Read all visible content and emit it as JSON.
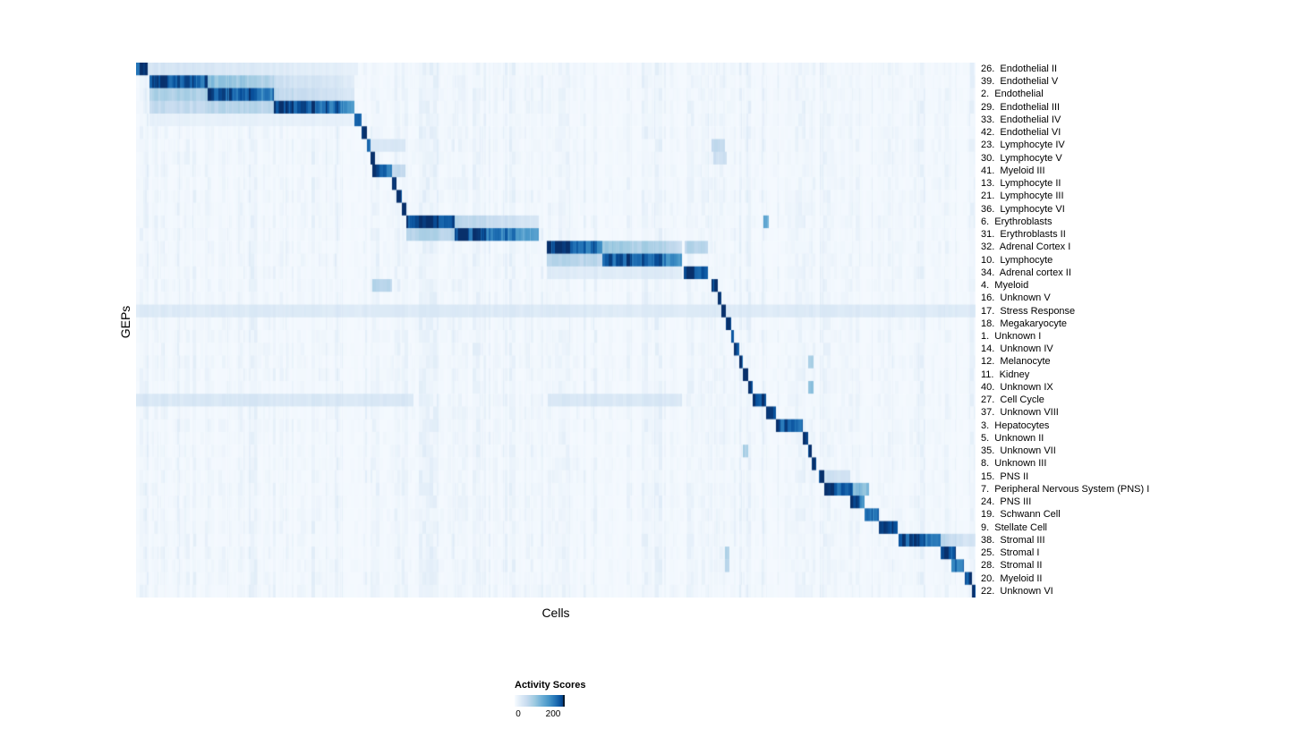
{
  "chart_data": {
    "type": "heatmap",
    "title": "",
    "xlabel": "Cells",
    "ylabel": "GEPs",
    "legend": {
      "title": "Activity Scores",
      "min": 0,
      "max": 200,
      "ticks": [
        "0",
        "200"
      ]
    },
    "value_note": "block v values are fractions of the max activity score (200)",
    "colormap": [
      {
        "p": 0.0,
        "c": "#f7fbff"
      },
      {
        "p": 0.12,
        "c": "#deebf7"
      },
      {
        "p": 0.25,
        "c": "#c6dbef"
      },
      {
        "p": 0.4,
        "c": "#9ecae1"
      },
      {
        "p": 0.55,
        "c": "#6baed6"
      },
      {
        "p": 0.7,
        "c": "#4292c6"
      },
      {
        "p": 0.82,
        "c": "#2171b5"
      },
      {
        "p": 0.92,
        "c": "#08519c"
      },
      {
        "p": 1.0,
        "c": "#08306b"
      }
    ],
    "rows": [
      {
        "label": "26.  Endothelial II",
        "blocks": [
          {
            "x0": 0.0,
            "x1": 0.013,
            "v": 1.0
          },
          {
            "x0": 0.013,
            "x1": 0.264,
            "v": 0.18,
            "v1": 0.08
          }
        ]
      },
      {
        "label": "39.  Endothelial V",
        "blocks": [
          {
            "x0": 0.015,
            "x1": 0.085,
            "v": 1.0,
            "v1": 0.85
          },
          {
            "x0": 0.085,
            "x1": 0.164,
            "v": 0.5,
            "v1": 0.3
          },
          {
            "x0": 0.164,
            "x1": 0.26,
            "v": 0.22,
            "v1": 0.12
          }
        ]
      },
      {
        "label": "2.  Endothelial",
        "blocks": [
          {
            "x0": 0.015,
            "x1": 0.085,
            "v": 0.35
          },
          {
            "x0": 0.085,
            "x1": 0.164,
            "v": 1.0,
            "v1": 0.8
          },
          {
            "x0": 0.164,
            "x1": 0.26,
            "v": 0.28,
            "v1": 0.15
          }
        ]
      },
      {
        "label": "29.  Endothelial III",
        "blocks": [
          {
            "x0": 0.015,
            "x1": 0.085,
            "v": 0.25
          },
          {
            "x0": 0.085,
            "x1": 0.164,
            "v": 0.3
          },
          {
            "x0": 0.164,
            "x1": 0.26,
            "v": 1.0,
            "v1": 0.75
          }
        ]
      },
      {
        "label": "33.  Endothelial IV",
        "blocks": [
          {
            "x0": 0.015,
            "x1": 0.26,
            "v": 0.08
          },
          {
            "x0": 0.26,
            "x1": 0.2676,
            "v": 1.0
          }
        ]
      },
      {
        "label": "42.  Endothelial VI",
        "blocks": [
          {
            "x0": 0.2676,
            "x1": 0.274,
            "v": 1.0
          }
        ]
      },
      {
        "label": "23.  Lymphocyte IV",
        "blocks": [
          {
            "x0": 0.274,
            "x1": 0.279,
            "v": 1.0
          },
          {
            "x0": 0.279,
            "x1": 0.32,
            "v": 0.15
          },
          {
            "x0": 0.6855,
            "x1": 0.7014,
            "v": 0.25
          }
        ]
      },
      {
        "label": "30.  Lymphocyte V",
        "blocks": [
          {
            "x0": 0.279,
            "x1": 0.2846,
            "v": 1.0
          },
          {
            "x0": 0.6876,
            "x1": 0.7036,
            "v": 0.2
          }
        ]
      },
      {
        "label": "41.  Myeloid III",
        "blocks": [
          {
            "x0": 0.2814,
            "x1": 0.3049,
            "v": 1.0,
            "v1": 0.8
          },
          {
            "x0": 0.3049,
            "x1": 0.32,
            "v": 0.25
          }
        ]
      },
      {
        "label": "13.  Lymphocyte II",
        "blocks": [
          {
            "x0": 0.3049,
            "x1": 0.3102,
            "v": 1.0
          }
        ]
      },
      {
        "label": "21.  Lymphocyte III",
        "blocks": [
          {
            "x0": 0.3102,
            "x1": 0.3156,
            "v": 1.0
          }
        ]
      },
      {
        "label": "36.  Lymphocyte VI",
        "blocks": [
          {
            "x0": 0.3156,
            "x1": 0.3209,
            "v": 1.0
          }
        ]
      },
      {
        "label": "6.  Erythroblasts",
        "blocks": [
          {
            "x0": 0.3209,
            "x1": 0.3795,
            "v": 1.0,
            "v1": 0.85
          },
          {
            "x0": 0.3795,
            "x1": 0.4787,
            "v": 0.3,
            "v1": 0.15
          },
          {
            "x0": 0.7463,
            "x1": 0.7527,
            "v": 0.55
          }
        ]
      },
      {
        "label": "31.  Erythroblasts II",
        "blocks": [
          {
            "x0": 0.3209,
            "x1": 0.3795,
            "v": 0.3
          },
          {
            "x0": 0.3795,
            "x1": 0.4787,
            "v": 1.0,
            "v1": 0.6
          }
        ]
      },
      {
        "label": "32.  Adrenal Cortex I",
        "blocks": [
          {
            "x0": 0.4883,
            "x1": 0.5544,
            "v": 1.0,
            "v1": 0.8
          },
          {
            "x0": 0.5544,
            "x1": 0.6503,
            "v": 0.45,
            "v1": 0.25
          },
          {
            "x0": 0.6525,
            "x1": 0.6802,
            "v": 0.3
          }
        ]
      },
      {
        "label": "10.  Lymphocyte",
        "blocks": [
          {
            "x0": 0.4883,
            "x1": 0.5544,
            "v": 0.3
          },
          {
            "x0": 0.5544,
            "x1": 0.6503,
            "v": 1.0,
            "v1": 0.75
          }
        ]
      },
      {
        "label": "34.  Adrenal cortex II",
        "blocks": [
          {
            "x0": 0.4883,
            "x1": 0.6503,
            "v": 0.12
          },
          {
            "x0": 0.6514,
            "x1": 0.6812,
            "v": 1.0,
            "v1": 0.85
          }
        ]
      },
      {
        "label": "4.  Myeloid",
        "blocks": [
          {
            "x0": 0.2814,
            "x1": 0.3049,
            "v": 0.3
          },
          {
            "x0": 0.6855,
            "x1": 0.6919,
            "v": 1.0
          }
        ]
      },
      {
        "label": "16.  Unknown V",
        "blocks": [
          {
            "x0": 0.6919,
            "x1": 0.6972,
            "v": 1.0
          }
        ]
      },
      {
        "label": "17.  Stress Response",
        "blocks": [
          {
            "x0": 0.0,
            "x1": 1.0,
            "v": 0.13
          },
          {
            "x0": 0.6972,
            "x1": 0.7025,
            "v": 1.0
          }
        ]
      },
      {
        "label": "18.  Megakaryocyte",
        "blocks": [
          {
            "x0": 0.7025,
            "x1": 0.7079,
            "v": 1.0
          }
        ]
      },
      {
        "label": "1.  Unknown I",
        "blocks": [
          {
            "x0": 0.7079,
            "x1": 0.7121,
            "v": 0.85
          }
        ]
      },
      {
        "label": "14.  Unknown IV",
        "blocks": [
          {
            "x0": 0.7121,
            "x1": 0.7175,
            "v": 1.0
          }
        ]
      },
      {
        "label": "12.  Melanocyte",
        "blocks": [
          {
            "x0": 0.7175,
            "x1": 0.7228,
            "v": 1.0
          },
          {
            "x0": 0.8006,
            "x1": 0.806,
            "v": 0.35
          }
        ]
      },
      {
        "label": "11.  Kidney",
        "blocks": [
          {
            "x0": 0.7228,
            "x1": 0.7292,
            "v": 1.0
          }
        ]
      },
      {
        "label": "40.  Unknown IX",
        "blocks": [
          {
            "x0": 0.7292,
            "x1": 0.7345,
            "v": 1.0
          },
          {
            "x0": 0.8006,
            "x1": 0.806,
            "v": 0.45
          }
        ]
      },
      {
        "label": "27.  Cell Cycle",
        "blocks": [
          {
            "x0": 0.0,
            "x1": 0.33,
            "v": 0.15
          },
          {
            "x0": 0.49,
            "x1": 0.65,
            "v": 0.15
          },
          {
            "x0": 0.7345,
            "x1": 0.7505,
            "v": 1.0,
            "v1": 0.85
          }
        ]
      },
      {
        "label": "37.  Unknown VIII",
        "blocks": [
          {
            "x0": 0.7505,
            "x1": 0.7612,
            "v": 1.0
          }
        ]
      },
      {
        "label": "3.  Hepatocytes",
        "blocks": [
          {
            "x0": 0.7612,
            "x1": 0.7942,
            "v": 1.0,
            "v1": 0.8
          }
        ]
      },
      {
        "label": "5.  Unknown II",
        "blocks": [
          {
            "x0": 0.7942,
            "x1": 0.7996,
            "v": 1.0
          }
        ]
      },
      {
        "label": "35.  Unknown VII",
        "blocks": [
          {
            "x0": 0.7228,
            "x1": 0.7292,
            "v": 0.35
          },
          {
            "x0": 0.7996,
            "x1": 0.8049,
            "v": 1.0
          }
        ]
      },
      {
        "label": "8.  Unknown III",
        "blocks": [
          {
            "x0": 0.8049,
            "x1": 0.8102,
            "v": 1.0
          }
        ]
      },
      {
        "label": "15.  PNS II",
        "blocks": [
          {
            "x0": 0.8134,
            "x1": 0.8198,
            "v": 1.0
          },
          {
            "x0": 0.8198,
            "x1": 0.8507,
            "v": 0.2
          }
        ]
      },
      {
        "label": "7.  Peripheral Nervous System (PNS) I",
        "blocks": [
          {
            "x0": 0.8198,
            "x1": 0.8529,
            "v": 1.0,
            "v1": 0.85
          },
          {
            "x0": 0.8529,
            "x1": 0.8721,
            "v": 0.5
          }
        ]
      },
      {
        "label": "24.  PNS III",
        "blocks": [
          {
            "x0": 0.8507,
            "x1": 0.8678,
            "v": 1.0,
            "v1": 0.8
          }
        ]
      },
      {
        "label": "19.  Schwann Cell",
        "blocks": [
          {
            "x0": 0.8678,
            "x1": 0.8838,
            "v": 1.0,
            "v1": 0.8
          }
        ]
      },
      {
        "label": "9.  Stellate Cell",
        "blocks": [
          {
            "x0": 0.8838,
            "x1": 0.9072,
            "v": 1.0,
            "v1": 0.85
          }
        ]
      },
      {
        "label": "38.  Stromal III",
        "blocks": [
          {
            "x0": 0.9083,
            "x1": 0.9584,
            "v": 1.0,
            "v1": 0.75
          },
          {
            "x0": 0.9584,
            "x1": 1.0,
            "v": 0.3,
            "v1": 0.15
          }
        ]
      },
      {
        "label": "25.  Stromal I",
        "blocks": [
          {
            "x0": 0.7014,
            "x1": 0.7068,
            "v": 0.35
          },
          {
            "x0": 0.9584,
            "x1": 0.9755,
            "v": 1.0
          }
        ]
      },
      {
        "label": "28.  Stromal II",
        "blocks": [
          {
            "x0": 0.7014,
            "x1": 0.7068,
            "v": 0.3
          },
          {
            "x0": 0.9712,
            "x1": 0.9861,
            "v": 0.9
          }
        ]
      },
      {
        "label": "20.  Myeloid II",
        "blocks": [
          {
            "x0": 0.9872,
            "x1": 0.9957,
            "v": 1.0
          }
        ]
      },
      {
        "label": "22.  Unknown VI",
        "blocks": [
          {
            "x0": 0.9957,
            "x1": 1.0,
            "v": 1.0
          }
        ]
      }
    ]
  }
}
